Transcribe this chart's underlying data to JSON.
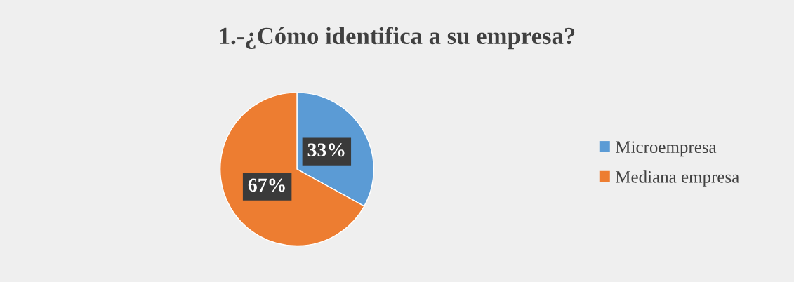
{
  "chart_data": {
    "type": "pie",
    "title": "1.-¿Cómo identifica a su empresa?",
    "categories": [
      "Microempresa",
      "Mediana empresa"
    ],
    "values": [
      33,
      67
    ],
    "colors": [
      "#5b9bd5",
      "#ed7d31"
    ],
    "value_labels": [
      "33%",
      "67%"
    ],
    "legend": "right"
  }
}
